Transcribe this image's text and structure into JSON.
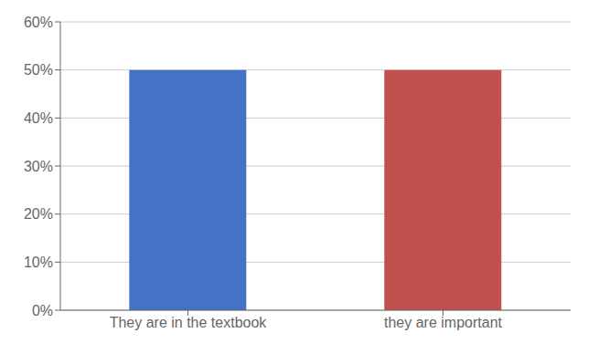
{
  "chart_data": {
    "type": "bar",
    "categories": [
      "They are in the textbook",
      "they are important"
    ],
    "values": [
      0.5,
      0.5
    ],
    "colors": [
      "#4472C4",
      "#C0504D"
    ],
    "ylim": [
      0,
      0.6
    ],
    "yticks": [
      {
        "value": 0.0,
        "label": "0%"
      },
      {
        "value": 0.1,
        "label": "10%"
      },
      {
        "value": 0.2,
        "label": "20%"
      },
      {
        "value": 0.3,
        "label": "30%"
      },
      {
        "value": 0.4,
        "label": "40%"
      },
      {
        "value": 0.5,
        "label": "50%"
      },
      {
        "value": 0.6,
        "label": "60%"
      }
    ],
    "grid": true
  }
}
